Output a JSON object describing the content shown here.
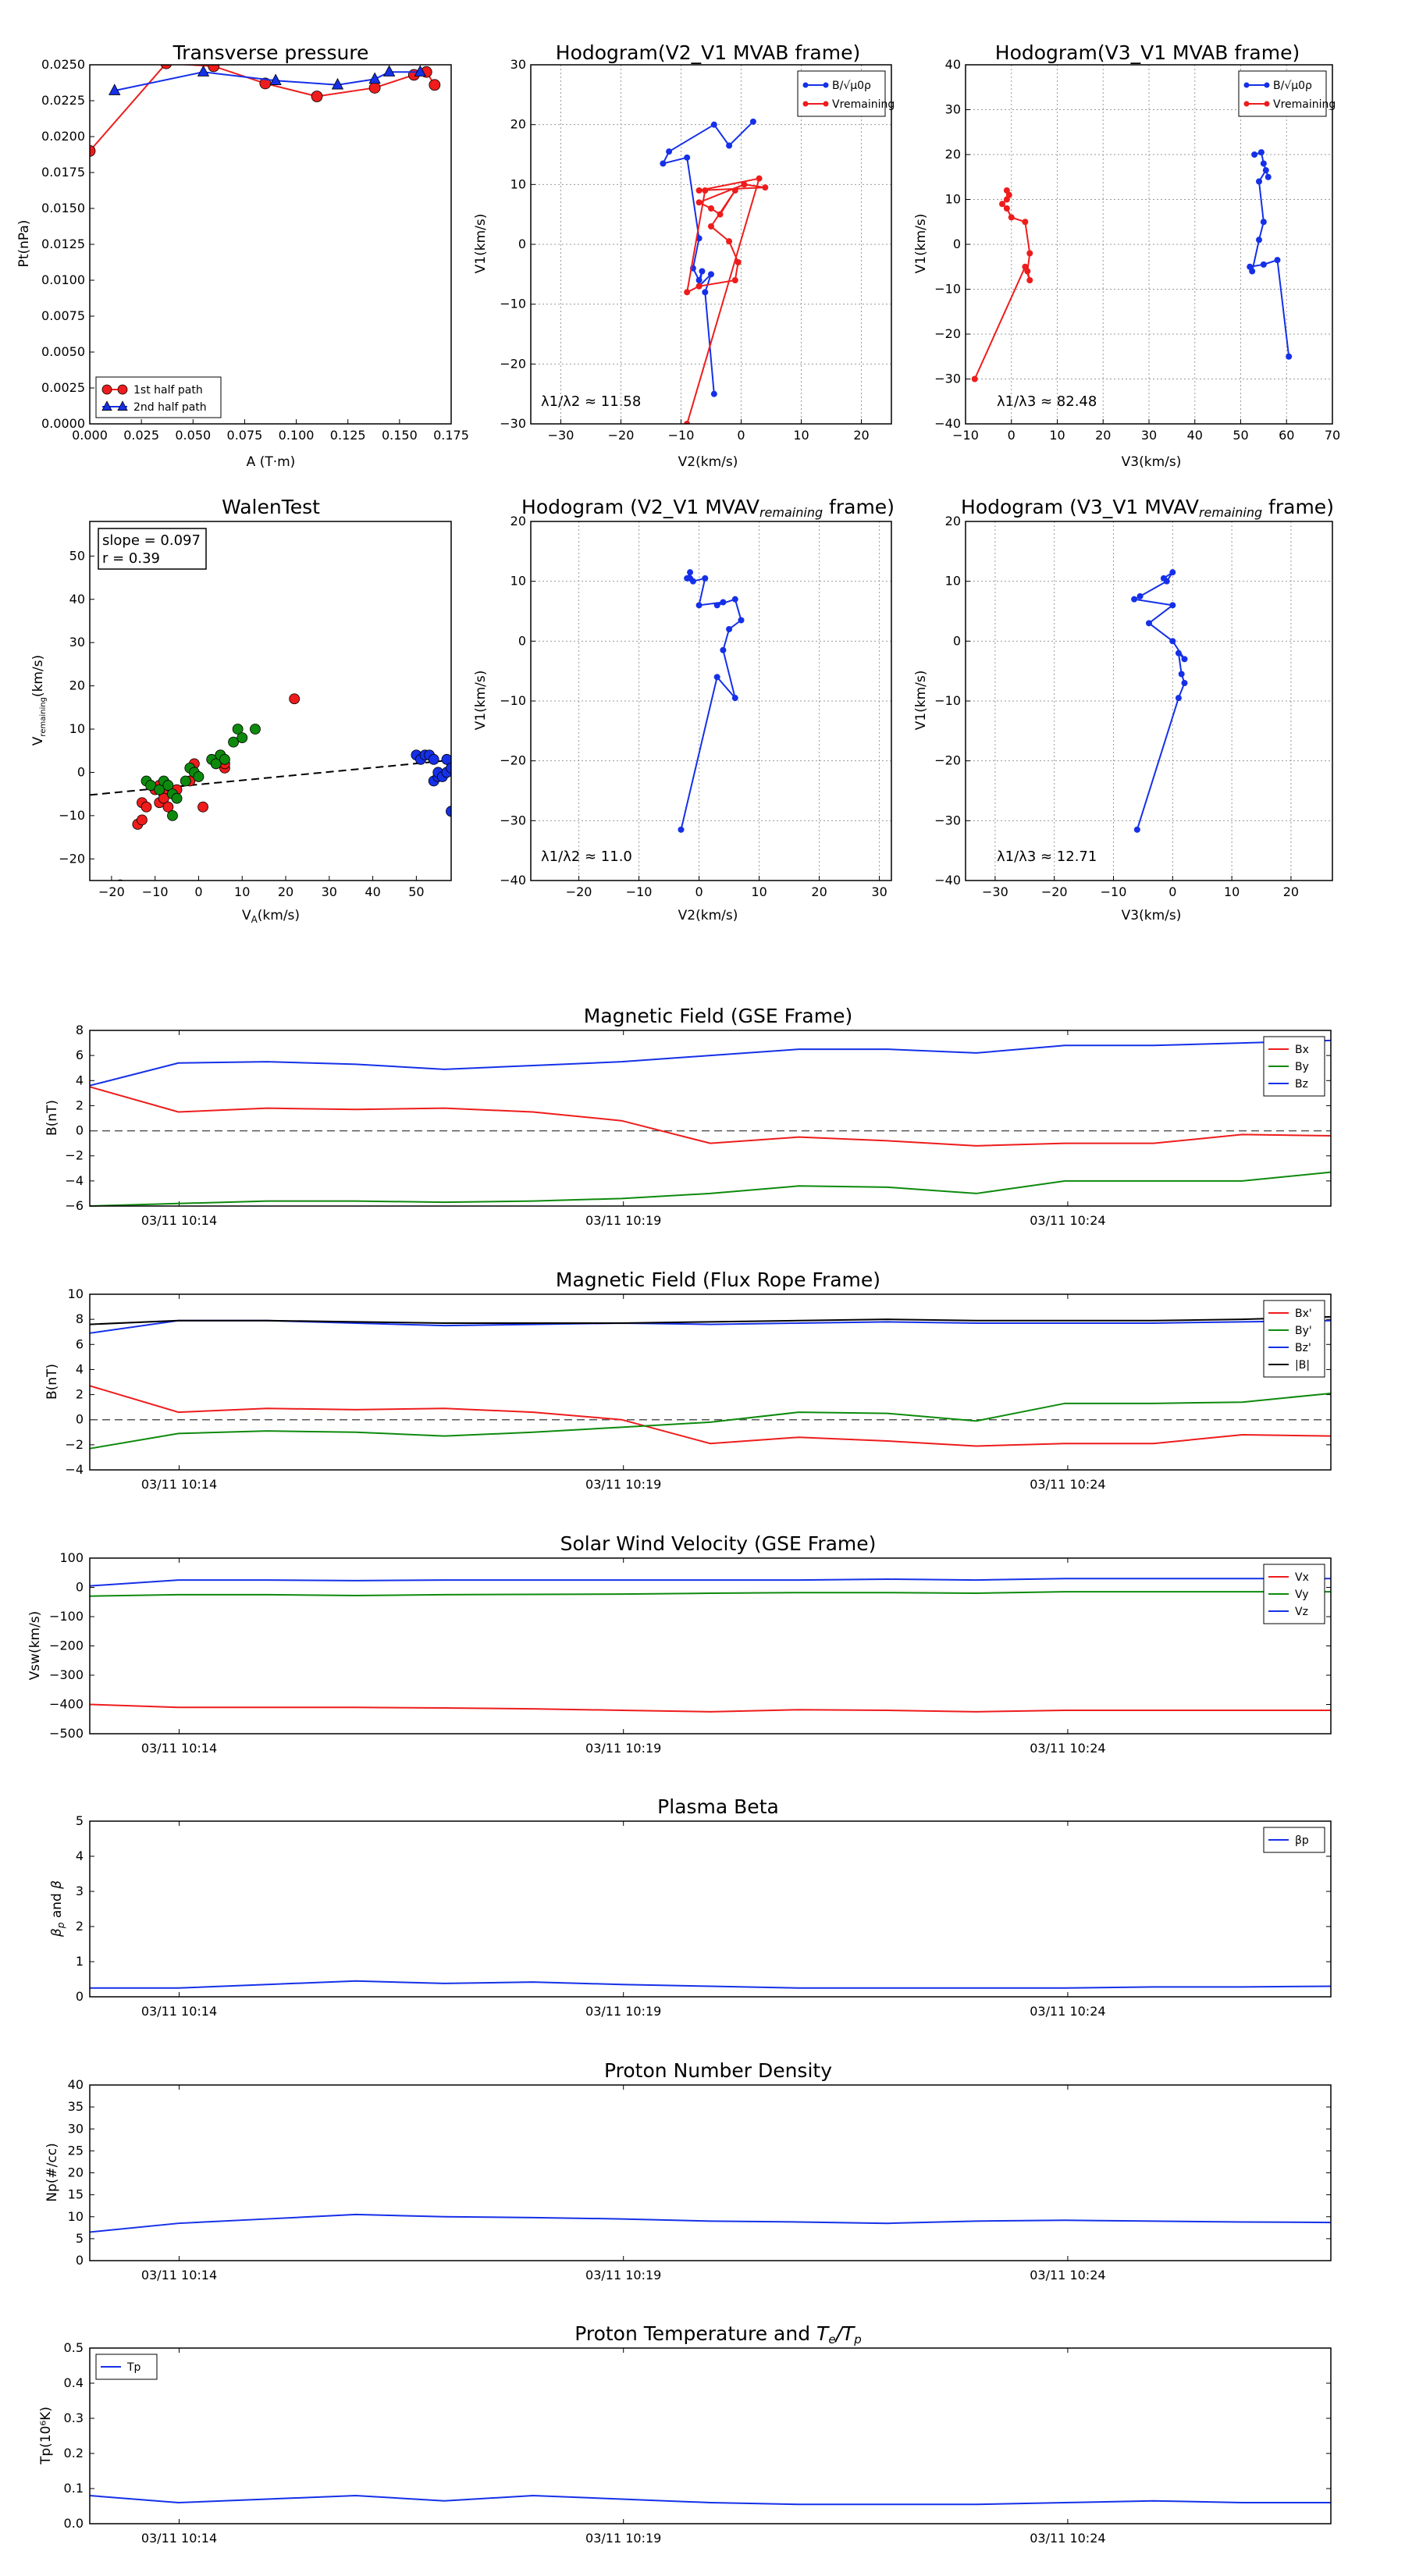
{
  "colors": {
    "red": "#ee1c1c",
    "blue": "#1530e8",
    "green": "#0d8a0d",
    "black": "#000000",
    "grid": "#999999"
  },
  "chart_data": [
    {
      "id": "tp",
      "type": "scatter",
      "title": "Transverse pressure",
      "xlabel": "A (T·m)",
      "ylabel": "Pt(nPa)",
      "xlim": [
        0,
        0.175
      ],
      "ylim": [
        0,
        0.025
      ],
      "xticks": [
        "0.000",
        "0.025",
        "0.050",
        "0.075",
        "0.100",
        "0.125",
        "0.150",
        "0.175"
      ],
      "yticks": [
        "0.0000",
        "0.0025",
        "0.0050",
        "0.0075",
        "0.0100",
        "0.0125",
        "0.0150",
        "0.0175",
        "0.0200",
        "0.0225",
        "0.0250"
      ],
      "legend": "lower-left",
      "series": [
        {
          "name": "1st half path",
          "color": "red",
          "marker": "circle",
          "x": [
            0.0,
            0.037,
            0.06,
            0.085,
            0.11,
            0.138,
            0.157,
            0.163,
            0.167
          ],
          "y": [
            0.019,
            0.0251,
            0.0249,
            0.0237,
            0.0228,
            0.0234,
            0.0243,
            0.0245,
            0.0236
          ]
        },
        {
          "name": "2nd half path",
          "color": "blue",
          "marker": "triangle",
          "x": [
            0.012,
            0.055,
            0.09,
            0.12,
            0.138,
            0.145,
            0.16
          ],
          "y": [
            0.0232,
            0.0245,
            0.0239,
            0.0236,
            0.024,
            0.0245,
            0.0245
          ]
        }
      ]
    },
    {
      "id": "h1",
      "type": "line",
      "title": "Hodogram(V2_V1 MVAB frame)",
      "xlabel": "V2(km/s)",
      "ylabel": "V1(km/s)",
      "xlim": [
        -35,
        25
      ],
      "ylim": [
        -30,
        30
      ],
      "xticks": [
        "−30",
        "−20",
        "−10",
        "0",
        "10",
        "20"
      ],
      "yticks": [
        "−30",
        "−20",
        "−10",
        "0",
        "10",
        "20",
        "30"
      ],
      "legend": "top-right",
      "grid": true,
      "annotation": "λ1/λ2 ≈ 11.58",
      "series": [
        {
          "name": "B/√μ0ρ",
          "color": "blue",
          "marker": "dot",
          "x": [
            2.0,
            -2.0,
            -4.5,
            -12.0,
            -13.0,
            -9.0,
            -7.0,
            -8.0,
            -7.0,
            -6.5,
            -7.0,
            -5.0,
            -6.0,
            -4.5
          ],
          "y": [
            20.5,
            16.5,
            20.0,
            15.5,
            13.5,
            14.5,
            1.0,
            -4.0,
            -6.0,
            -4.5,
            -7.0,
            -5.0,
            -8.0,
            -25.0
          ]
        },
        {
          "name": "Vremaining",
          "color": "red",
          "marker": "dot",
          "x": [
            -9.0,
            3.0,
            -7.0,
            4.0,
            0.5,
            -7.0,
            -5.0,
            -3.5,
            -1.0,
            -5.0,
            -2.0,
            -0.5,
            -1.0,
            -7.0,
            -9.0,
            -6.0
          ],
          "y": [
            -30.0,
            11.0,
            9.0,
            9.5,
            10.0,
            7.0,
            6.0,
            5.0,
            9.0,
            3.0,
            0.5,
            -3.0,
            -6.0,
            -7.0,
            -8.0,
            9.0
          ]
        }
      ]
    },
    {
      "id": "h2",
      "type": "line",
      "title": "Hodogram(V3_V1 MVAB frame)",
      "xlabel": "V3(km/s)",
      "ylabel": "V1(km/s)",
      "xlim": [
        -10,
        70
      ],
      "ylim": [
        -40,
        40
      ],
      "xticks": [
        "−10",
        "0",
        "10",
        "20",
        "30",
        "40",
        "50",
        "60",
        "70"
      ],
      "yticks": [
        "−40",
        "−30",
        "−20",
        "−10",
        "0",
        "10",
        "20",
        "30",
        "40"
      ],
      "legend": "top-right",
      "grid": true,
      "annotation": "λ1/λ3 ≈ 82.48",
      "series": [
        {
          "name": "B/√μ0ρ",
          "color": "blue",
          "marker": "dot",
          "x": [
            60.5,
            58.0,
            55.0,
            52.0,
            52.5,
            54.0,
            55.0,
            54.0,
            55.5,
            56.0,
            55.0,
            54.5,
            53.0
          ],
          "y": [
            -25.0,
            -3.5,
            -4.5,
            -5.0,
            -6.0,
            1.0,
            5.0,
            14.0,
            16.5,
            15.0,
            18.0,
            20.5,
            20.0
          ]
        },
        {
          "name": "Vremaining",
          "color": "red",
          "marker": "dot",
          "x": [
            -8.0,
            3.0,
            4.0,
            3.5,
            4.0,
            3.0,
            0.0,
            -1.0,
            -2.0,
            -1.0,
            -0.5,
            -1.0
          ],
          "y": [
            -30.0,
            -5.0,
            -8.0,
            -6.0,
            -2.0,
            5.0,
            6.0,
            8.0,
            9.0,
            10.0,
            11.0,
            12.0
          ]
        }
      ]
    },
    {
      "id": "wt",
      "type": "scatter",
      "title": "WalenTest",
      "xlabel": "V A(km/s)",
      "ylabel": "Vremaining(km/s)",
      "xlim": [
        -25,
        58
      ],
      "ylim": [
        -25,
        58
      ],
      "xticks": [
        "−20",
        "−10",
        "0",
        "10",
        "20",
        "30",
        "40",
        "50"
      ],
      "yticks": [
        "−20",
        "−10",
        "0",
        "10",
        "20",
        "30",
        "40",
        "50"
      ],
      "annotation_lines": [
        "slope = 0.097",
        "r = 0.39"
      ],
      "fit": {
        "slope": 0.097,
        "intercept": -2.8
      },
      "series": [
        {
          "color": "red",
          "x": [
            -14,
            -13,
            -13,
            -12,
            -10,
            -9,
            -9,
            -8,
            -8,
            -7,
            -5,
            -2,
            -1,
            1,
            4,
            5,
            6,
            6,
            22
          ],
          "y": [
            -12,
            -11,
            -7,
            -8,
            -4,
            -3,
            -7,
            -5,
            -6,
            -8,
            -4,
            -2,
            2,
            -8,
            2,
            4,
            1,
            2,
            17
          ]
        },
        {
          "color": "green",
          "x": [
            -18,
            -12,
            -11,
            -9,
            -8,
            -7,
            -6,
            -6,
            -5,
            -3,
            -2,
            -1,
            0,
            3,
            4,
            5,
            6,
            8,
            9,
            10,
            13
          ],
          "y": [
            -26,
            -2,
            -3,
            -4,
            -2,
            -3,
            -5,
            -10,
            -6,
            -2,
            1,
            0,
            -1,
            3,
            2,
            4,
            3,
            7,
            10,
            8,
            10
          ]
        },
        {
          "color": "blue",
          "x": [
            50,
            51,
            52,
            53,
            54,
            54,
            55,
            55,
            56,
            57,
            57,
            58,
            58
          ],
          "y": [
            4,
            3,
            4,
            4,
            3,
            -2,
            -1,
            0,
            -1,
            0,
            3,
            1,
            -9
          ]
        }
      ]
    },
    {
      "id": "h3",
      "type": "line",
      "title": "Hodogram (V2_V1 MVAVremaining frame)",
      "xlabel": "V2(km/s)",
      "ylabel": "V1(km/s)",
      "xlim": [
        -28,
        32
      ],
      "ylim": [
        -40,
        20
      ],
      "xticks": [
        "−20",
        "−10",
        "0",
        "10",
        "20",
        "30"
      ],
      "yticks": [
        "−40",
        "−30",
        "−20",
        "−10",
        "0",
        "10",
        "20"
      ],
      "grid": true,
      "annotation": "λ1/λ2 ≈ 11.0",
      "series": [
        {
          "color": "blue",
          "marker": "dot",
          "x": [
            -3.0,
            3.0,
            6.0,
            4.0,
            5.0,
            7.0,
            6.0,
            3.0,
            4.0,
            0.0,
            1.0,
            -1.0,
            -2.0,
            -1.5,
            -1.5
          ],
          "y": [
            -31.5,
            -6.0,
            -9.5,
            -1.5,
            2.0,
            3.5,
            7.0,
            6.0,
            6.5,
            6.0,
            10.5,
            10.0,
            10.5,
            11.5,
            10.5
          ]
        }
      ]
    },
    {
      "id": "h4",
      "type": "line",
      "title": "Hodogram (V3_V1 MVAVremaining frame)",
      "xlabel": "V3(km/s)",
      "ylabel": "V1(km/s)",
      "xlim": [
        -35,
        27
      ],
      "ylim": [
        -40,
        20
      ],
      "xticks": [
        "−30",
        "−20",
        "−10",
        "0",
        "10",
        "20"
      ],
      "yticks": [
        "−40",
        "−30",
        "−20",
        "−10",
        "0",
        "10",
        "20"
      ],
      "grid": true,
      "annotation": "λ1/λ3 ≈ 12.71",
      "series": [
        {
          "color": "blue",
          "marker": "dot",
          "x": [
            -6.0,
            1.0,
            2.0,
            1.5,
            1.0,
            2.0,
            0.0,
            -4.0,
            0.0,
            -6.5,
            -5.5,
            -1.0,
            0.0,
            -1.5
          ],
          "y": [
            -31.5,
            -9.5,
            -7.0,
            -5.5,
            -2.0,
            -3.0,
            0.0,
            3.0,
            6.0,
            7.0,
            7.5,
            10.0,
            11.5,
            10.5
          ]
        }
      ]
    },
    {
      "id": "ts1",
      "type": "line",
      "title": "Magnetic Field (GSE Frame)",
      "ylabel": "B(nT)",
      "ylim": [
        -6,
        8
      ],
      "yticks": [
        "−6",
        "−4",
        "−2",
        "0",
        "2",
        "4",
        "6",
        "8"
      ],
      "xticks": [
        "03/11 10:14",
        "03/11 10:19",
        "03/11 10:24"
      ],
      "zero_line": true,
      "legend": "top-right",
      "series": [
        {
          "name": "Bx",
          "color": "red",
          "values": [
            3.5,
            1.5,
            1.8,
            1.7,
            1.8,
            1.5,
            0.8,
            -1.0,
            -0.5,
            -0.8,
            -1.2,
            -1.0,
            -1.0,
            -0.3,
            -0.4
          ]
        },
        {
          "name": "By",
          "color": "green",
          "values": [
            -6.0,
            -5.8,
            -5.6,
            -5.6,
            -5.7,
            -5.6,
            -5.4,
            -5.0,
            -4.4,
            -4.5,
            -5.0,
            -4.0,
            -4.0,
            -4.0,
            -3.3
          ]
        },
        {
          "name": "Bz",
          "color": "blue",
          "values": [
            3.6,
            5.4,
            5.5,
            5.3,
            4.9,
            5.2,
            5.5,
            6.0,
            6.5,
            6.5,
            6.2,
            6.8,
            6.8,
            7.0,
            7.2
          ]
        }
      ]
    },
    {
      "id": "ts2",
      "type": "line",
      "title": "Magnetic Field (Flux Rope Frame)",
      "ylabel": "B(nT)",
      "ylim": [
        -4,
        10
      ],
      "yticks": [
        "−4",
        "−2",
        "0",
        "2",
        "4",
        "6",
        "8",
        "10"
      ],
      "xticks": [
        "03/11 10:14",
        "03/11 10:19",
        "03/11 10:24"
      ],
      "zero_line": true,
      "legend": "top-right",
      "series": [
        {
          "name": "Bx'",
          "color": "red",
          "values": [
            2.7,
            0.6,
            0.9,
            0.8,
            0.9,
            0.6,
            0.0,
            -1.9,
            -1.4,
            -1.7,
            -2.1,
            -1.9,
            -1.9,
            -1.2,
            -1.3
          ]
        },
        {
          "name": "By'",
          "color": "green",
          "values": [
            -2.3,
            -1.1,
            -0.9,
            -1.0,
            -1.3,
            -1.0,
            -0.6,
            -0.2,
            0.6,
            0.5,
            -0.1,
            1.3,
            1.3,
            1.4,
            2.1
          ]
        },
        {
          "name": "Bz'",
          "color": "blue",
          "values": [
            6.9,
            7.9,
            7.9,
            7.7,
            7.5,
            7.6,
            7.7,
            7.6,
            7.7,
            7.8,
            7.7,
            7.7,
            7.7,
            7.8,
            7.9
          ]
        },
        {
          "name": "|B|",
          "color": "black",
          "values": [
            7.6,
            7.9,
            7.9,
            7.8,
            7.7,
            7.7,
            7.7,
            7.8,
            7.9,
            8.0,
            7.9,
            7.9,
            7.9,
            8.0,
            8.2
          ]
        }
      ]
    },
    {
      "id": "ts3",
      "type": "line",
      "title": "Solar Wind Velocity (GSE Frame)",
      "ylabel": "Vsw(km/s)",
      "ylim": [
        -500,
        100
      ],
      "yticks": [
        "−500",
        "−400",
        "−300",
        "−200",
        "−100",
        "0",
        "100"
      ],
      "xticks": [
        "03/11 10:14",
        "03/11 10:19",
        "03/11 10:24"
      ],
      "legend": "top-right",
      "series": [
        {
          "name": "Vx",
          "color": "red",
          "values": [
            -400,
            -410,
            -410,
            -410,
            -412,
            -415,
            -420,
            -425,
            -418,
            -420,
            -425,
            -420,
            -420,
            -420,
            -420
          ]
        },
        {
          "name": "Vy",
          "color": "green",
          "values": [
            -30,
            -25,
            -25,
            -28,
            -25,
            -24,
            -23,
            -20,
            -18,
            -18,
            -20,
            -15,
            -15,
            -15,
            -15
          ]
        },
        {
          "name": "Vz",
          "color": "blue",
          "values": [
            5,
            25,
            25,
            23,
            25,
            25,
            25,
            25,
            25,
            28,
            25,
            30,
            30,
            30,
            30
          ]
        }
      ]
    },
    {
      "id": "ts4",
      "type": "line",
      "title": "Plasma Beta",
      "ylabel": "βp and β",
      "ylim": [
        0,
        5
      ],
      "yticks": [
        "0",
        "1",
        "2",
        "3",
        "4",
        "5"
      ],
      "xticks": [
        "03/11 10:14",
        "03/11 10:19",
        "03/11 10:24"
      ],
      "legend": "top-right",
      "series": [
        {
          "name": "βp",
          "color": "blue",
          "values": [
            0.25,
            0.25,
            0.35,
            0.45,
            0.38,
            0.42,
            0.35,
            0.3,
            0.25,
            0.25,
            0.25,
            0.25,
            0.28,
            0.28,
            0.3
          ]
        }
      ]
    },
    {
      "id": "ts5",
      "type": "line",
      "title": "Proton Number Density",
      "ylabel": "Np(#/cc)",
      "ylim": [
        0,
        40
      ],
      "yticks": [
        "0",
        "5",
        "10",
        "15",
        "20",
        "25",
        "30",
        "35",
        "40"
      ],
      "xticks": [
        "03/11 10:14",
        "03/11 10:19",
        "03/11 10:24"
      ],
      "series": [
        {
          "color": "blue",
          "values": [
            6.5,
            8.5,
            9.5,
            10.5,
            10.0,
            9.8,
            9.5,
            9.0,
            8.8,
            8.5,
            9.0,
            9.2,
            9.0,
            8.8,
            8.7
          ]
        }
      ]
    },
    {
      "id": "ts6",
      "type": "line",
      "title": "Proton Temperature and Te/Tp",
      "ylabel": "Tp(10⁶K)",
      "ylim": [
        0,
        0.5
      ],
      "yticks": [
        "0.0",
        "0.1",
        "0.2",
        "0.3",
        "0.4",
        "0.5"
      ],
      "xticks": [
        "03/11 10:14",
        "03/11 10:19",
        "03/11 10:24"
      ],
      "legend": "top-left",
      "series": [
        {
          "name": "Tp",
          "color": "blue",
          "values": [
            0.08,
            0.06,
            0.07,
            0.08,
            0.065,
            0.08,
            0.07,
            0.06,
            0.055,
            0.055,
            0.055,
            0.06,
            0.065,
            0.06,
            0.06
          ]
        }
      ]
    }
  ]
}
